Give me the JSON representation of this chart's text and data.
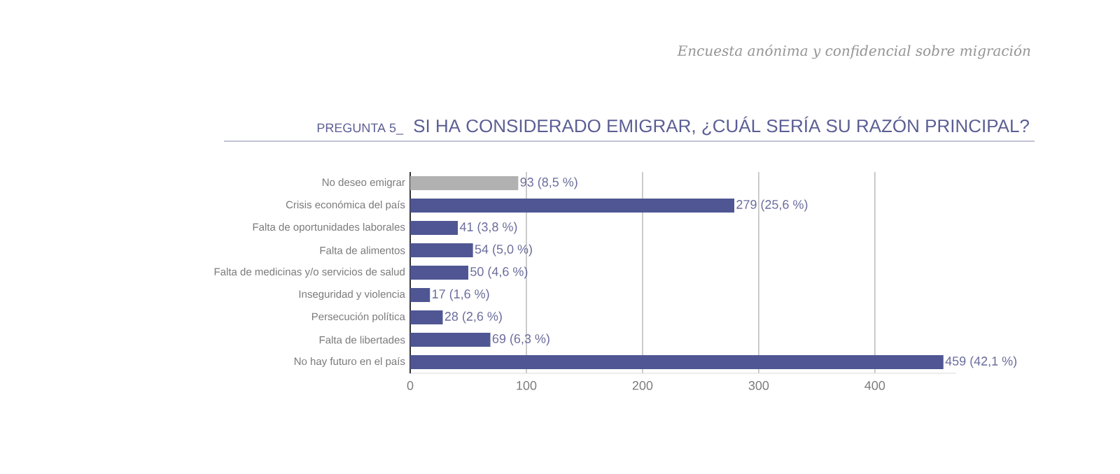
{
  "chart_data": {
    "type": "bar",
    "orientation": "horizontal",
    "title": "SI HA CONSIDERADO EMIGRAR, ¿CUÁL SERÍA SU RAZÓN PRINCIPAL?",
    "subtitle": "Encuesta anónima y confidencial sobre migración",
    "annotations": [
      "PREGUNTA 5_"
    ],
    "categories": [
      "No deseo emigrar",
      "Crisis económica del país",
      "Falta de oportunidades laborales",
      "Falta de alimentos",
      "Falta de medicinas y/o servicios de salud",
      "Inseguridad y violencia",
      "Persecución política",
      "Falta de libertades",
      "No hay futuro en el país"
    ],
    "values": [
      93,
      279,
      41,
      54,
      50,
      17,
      28,
      69,
      459
    ],
    "colors": [
      "#b1b1b1",
      "#4f5693",
      "#4f5693",
      "#4f5693",
      "#4f5693",
      "#4f5693",
      "#4f5693",
      "#4f5693",
      "#4f5693"
    ],
    "value_labels": [
      "93 (8,5 %)",
      "279 (25,6 %)",
      "41 (3,8 %)",
      "54 (5,0 %)",
      "50 (4,6 %)",
      "17 (1,6 %)",
      "28 (2,6 %)",
      "69 (6,3 %)",
      "459 (42,1 %)"
    ],
    "xlim": [
      0,
      470
    ],
    "xticks": [
      0,
      100,
      200,
      300,
      400
    ],
    "grid": "x"
  }
}
